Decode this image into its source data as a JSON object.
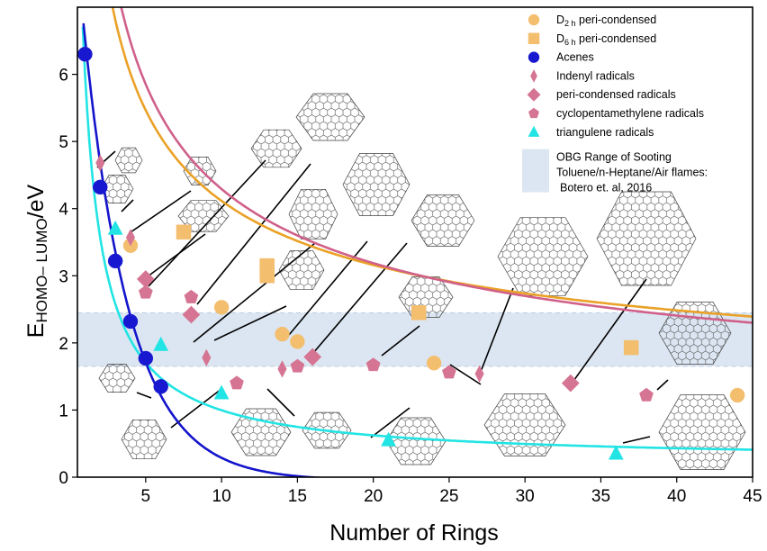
{
  "chart_data": {
    "type": "scatter",
    "xlabel": "Number of Rings",
    "ylabel": "E",
    "ylabel_sub": "HOMO– LUMO",
    "ylabel_unit": "/eV",
    "xlim": [
      0.5,
      45
    ],
    "ylim": [
      0,
      7
    ],
    "xticks": [
      5,
      10,
      15,
      20,
      25,
      30,
      35,
      40,
      45
    ],
    "yticks": [
      0,
      1,
      2,
      3,
      4,
      5,
      6
    ],
    "band": {
      "y_range": [
        1.65,
        2.45
      ],
      "label_lines": [
        "OBG Range of Sooting",
        "Toluene/n-Heptane/Air flames:",
        "Botero et. al, 2016"
      ],
      "color": "#dce6f2"
    },
    "series": [
      {
        "name": "D",
        "name_sub": "2 h",
        "name_suffix": " peri-condensed",
        "marker": "circle",
        "color": "#f3be6e",
        "points": [
          [
            1,
            6.3
          ],
          [
            4,
            3.45
          ],
          [
            10,
            2.53
          ],
          [
            14,
            2.13
          ],
          [
            15,
            2.02
          ],
          [
            24,
            1.7
          ],
          [
            44,
            1.22
          ]
        ]
      },
      {
        "name": "D",
        "name_sub": "6 h",
        "name_suffix": " peri-condensed",
        "marker": "square",
        "color": "#f3be6e",
        "points": [
          [
            7.5,
            3.65
          ],
          [
            13,
            3.15
          ],
          [
            13,
            3.0
          ],
          [
            23,
            2.45
          ],
          [
            37,
            1.93
          ]
        ]
      },
      {
        "name": "Acenes",
        "marker": "circle",
        "color": "#1818d0",
        "points": [
          [
            1,
            6.3
          ],
          [
            2,
            4.32
          ],
          [
            3,
            3.22
          ],
          [
            4,
            2.32
          ],
          [
            5,
            1.77
          ],
          [
            6,
            1.35
          ]
        ]
      },
      {
        "name": "Indenyl radicals",
        "marker": "thin-diamond",
        "color": "#d57593",
        "points": [
          [
            2,
            4.68
          ],
          [
            4,
            3.57
          ],
          [
            9,
            1.78
          ],
          [
            14,
            1.61
          ],
          [
            27,
            1.54
          ]
        ]
      },
      {
        "name": "peri-condensed radicals",
        "marker": "diamond",
        "color": "#d57593",
        "points": [
          [
            5,
            2.95
          ],
          [
            8,
            2.42
          ],
          [
            16,
            1.79
          ],
          [
            33,
            1.4
          ]
        ]
      },
      {
        "name": "cyclopentamethylene radicals",
        "marker": "pentagon",
        "color": "#d57593",
        "points": [
          [
            5,
            2.75
          ],
          [
            8,
            2.68
          ],
          [
            11,
            1.4
          ],
          [
            15,
            1.65
          ],
          [
            20,
            1.67
          ],
          [
            25,
            1.56
          ],
          [
            38,
            1.22
          ]
        ]
      },
      {
        "name": "triangulene radicals",
        "marker": "triangle",
        "color": "#22e4e4",
        "points": [
          [
            3,
            3.7
          ],
          [
            6,
            1.97
          ],
          [
            10,
            1.25
          ],
          [
            21,
            0.55
          ],
          [
            36,
            0.35
          ]
        ]
      }
    ],
    "fit_curves": [
      {
        "color": "#eaa126",
        "a": 0.855,
        "b": 1.458,
        "x_start": 2.6,
        "x_end": 45
      },
      {
        "color": "#d0608a",
        "a": 0.522,
        "b": 1.686,
        "x_start": 1.5,
        "x_end": 45
      },
      {
        "color": "#22e4e4",
        "a": 0.0,
        "b": 0.0,
        "cyan": true,
        "x_start": 0.85,
        "x_end": 45
      },
      {
        "color": "#1414cc",
        "acene": true,
        "x_start": 0.9,
        "x_end": 20
      }
    ],
    "legend_position": "top-right"
  }
}
